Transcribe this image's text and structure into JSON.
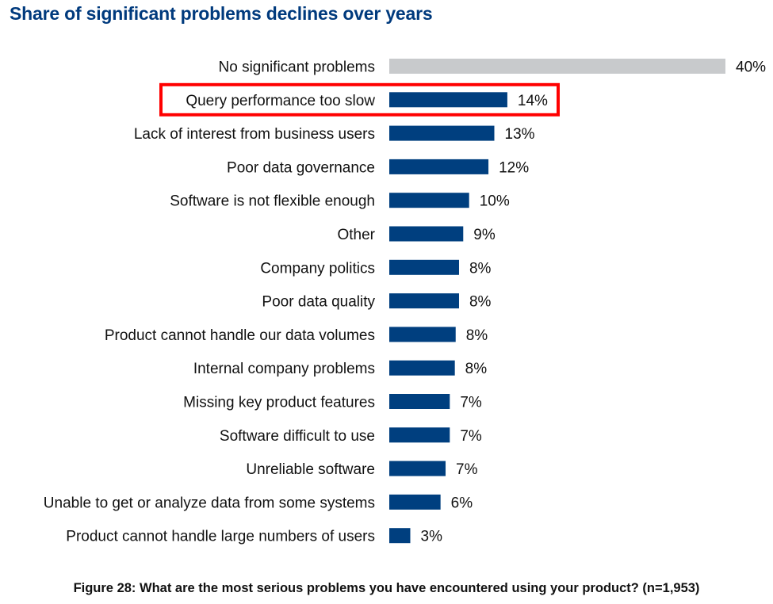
{
  "chart_data": {
    "type": "bar",
    "orientation": "horizontal",
    "title": "Share of significant problems declines over years",
    "caption": "Figure 28: What are the most serious problems you have encountered using your product? (n=1,953)",
    "xlabel": "",
    "ylabel": "",
    "xlim": [
      0,
      40
    ],
    "grid": false,
    "value_suffix": "%",
    "highlighted_category": "Query performance too slow",
    "colors": {
      "primary": "#003f7f",
      "neutral": "#c8cacc",
      "highlight_box": "#ff0000"
    },
    "categories": [
      "No significant problems",
      "Query performance too slow",
      "Lack of interest from business users",
      "Poor data governance",
      "Software is not flexible enough",
      "Other",
      "Company politics",
      "Poor data quality",
      "Product cannot handle our data volumes",
      "Internal company problems",
      "Missing key product features",
      "Software difficult to use",
      "Unreliable software",
      "Unable to get or analyze data from some systems",
      "Product cannot handle large numbers of users"
    ],
    "values": [
      40,
      14.05,
      12.5,
      11.8,
      9.5,
      8.8,
      8.3,
      8.3,
      7.9,
      7.8,
      7.2,
      7.2,
      6.7,
      6.1,
      2.5
    ],
    "labels": [
      "40%",
      "14%",
      "13%",
      "12%",
      "10%",
      "9%",
      "8%",
      "8%",
      "8%",
      "8%",
      "7%",
      "7%",
      "7%",
      "6%",
      "3%"
    ],
    "bar_colors": [
      "neutral",
      "primary",
      "primary",
      "primary",
      "primary",
      "primary",
      "primary",
      "primary",
      "primary",
      "primary",
      "primary",
      "primary",
      "primary",
      "primary",
      "primary"
    ]
  }
}
